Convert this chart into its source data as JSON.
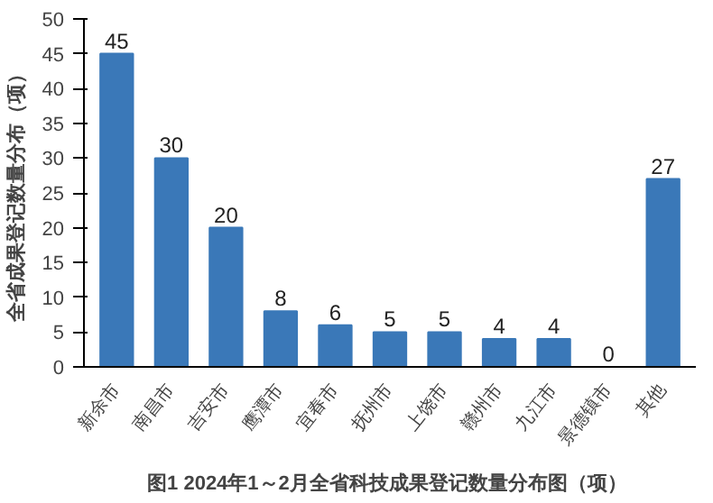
{
  "chart_data": {
    "type": "bar",
    "title": "图1  2024年1～2月全省科技成果登记数量分布图（项）",
    "ylabel": "全省成果登记数量分布（项）",
    "categories": [
      "新余市",
      "南昌市",
      "吉安市",
      "鹰潭市",
      "宜春市",
      "抚州市",
      "上饶市",
      "赣州市",
      "九江市",
      "景德镇市",
      "其他"
    ],
    "values": [
      45,
      30,
      20,
      8,
      6,
      5,
      5,
      4,
      4,
      0,
      27
    ],
    "color": "#3a78b8",
    "ylim": [
      0,
      50
    ],
    "yticks": [
      0,
      5,
      10,
      15,
      20,
      25,
      30,
      35,
      40,
      45,
      50
    ],
    "grid": false,
    "data_labels": true
  }
}
